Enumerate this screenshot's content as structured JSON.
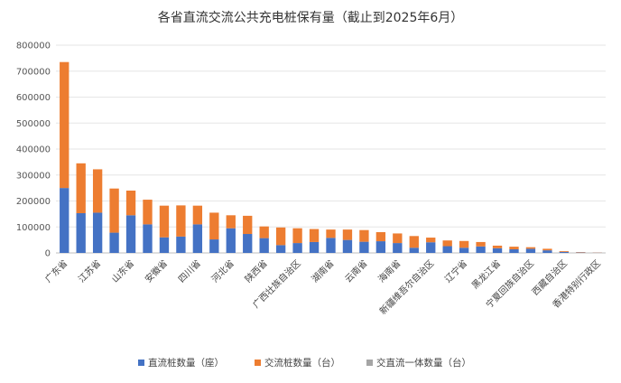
{
  "chart_data": {
    "type": "bar",
    "stacked": true,
    "title": "各省直流交流公共充电桩保有量（截止到2025年6月）",
    "xlabel": "",
    "ylabel": "",
    "ylim": [
      0,
      800000
    ],
    "yticks": [
      "0",
      "100000",
      "200000",
      "300000",
      "400000",
      "500000",
      "600000",
      "700000",
      "800000"
    ],
    "grid": true,
    "legend_position": "bottom",
    "categories": [
      "广东省",
      "",
      "江苏省",
      "",
      "山东省",
      "",
      "安徽省",
      "",
      "四川省",
      "",
      "河北省",
      "",
      "陕西省",
      "",
      "广西壮族自治区",
      "",
      "湖南省",
      "",
      "云南省",
      "",
      "海南省",
      "",
      "新疆维吾尔自治区",
      "",
      "辽宁省",
      "",
      "黑龙江省",
      "",
      "宁夏回族自治区",
      "",
      "西藏自治区",
      "",
      "香港特别行政区"
    ],
    "series": [
      {
        "name": "直流桩数量（座）",
        "color": "#4472C4",
        "values": [
          250000,
          153000,
          155000,
          78000,
          145000,
          110000,
          60000,
          63000,
          110000,
          52000,
          95000,
          73000,
          57000,
          30000,
          38000,
          42000,
          58000,
          50000,
          43000,
          45000,
          38000,
          20000,
          41000,
          26000,
          20000,
          25000,
          18000,
          14000,
          16000,
          10000,
          4000,
          1500,
          800
        ]
      },
      {
        "name": "交流桩数量（台）",
        "color": "#ED7D31",
        "values": [
          485000,
          192000,
          167000,
          170000,
          95000,
          95000,
          122000,
          120000,
          72000,
          103000,
          50000,
          70000,
          45000,
          68000,
          57000,
          50000,
          32000,
          40000,
          45000,
          35000,
          37000,
          45000,
          18000,
          22000,
          26000,
          17000,
          10000,
          10000,
          6000,
          6000,
          3000,
          1500,
          700
        ]
      },
      {
        "name": "交直流一体数量（台）",
        "color": "#A5A5A5",
        "values": [
          0,
          0,
          0,
          0,
          0,
          0,
          0,
          0,
          0,
          0,
          0,
          0,
          0,
          0,
          0,
          0,
          0,
          0,
          0,
          0,
          0,
          0,
          0,
          0,
          0,
          0,
          0,
          0,
          0,
          0,
          0,
          0,
          0
        ]
      }
    ]
  }
}
